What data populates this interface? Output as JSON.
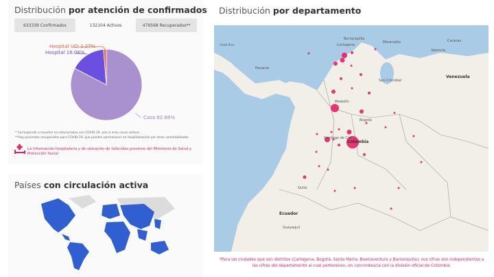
{
  "confirmed_card": {
    "title_light": "Distribución",
    "title_bold": "por atención de confirmados",
    "tabs": [
      {
        "label": "633339 Confirmados",
        "active": false
      },
      {
        "label": "132104 Activos",
        "active": true
      },
      {
        "label": "479568 Recuperados**",
        "active": false
      }
    ],
    "pie": [
      {
        "label": "Casa 82.68%",
        "value": 82.68,
        "color": "#a990cf"
      },
      {
        "label": "Hospital 16.06%",
        "value": 16.06,
        "color": "#6a4fe0"
      },
      {
        "label": "Hospital UCI 1.27%",
        "value": 1.27,
        "color": "#f0643c"
      }
    ],
    "notes": [
      "* Corresponde a muertes no relacionadas con COVID-19, aún si eran casos activos",
      "**Hay pacientes recuperados para COVID-19, que pueden permanecer en hospitalización por otras comorbilidades"
    ],
    "info": "La información hospitalaria y de ubicación de fallecidos proviene del Ministerio de Salud y Protección Social",
    "info_icon": "hospital-bed-icon",
    "accent": "#e91e63"
  },
  "countries_card": {
    "title_light": "Países",
    "title_bold": "con circulación activa",
    "active_color": "#2f5fd0"
  },
  "department_card": {
    "title_light": "Distribución",
    "title_bold": "por departamento",
    "map_labels": {
      "barranquilla": "Barranquilla",
      "cartagena": "Cartagena",
      "maracaibo": "Maracaibo",
      "caracas": "Caracas",
      "valencia": "Valencia",
      "panama": "Panamá",
      "costa_rica": "Costa Rica",
      "san_cristobal": "San Cristóbal",
      "venezuela": "Venezuela",
      "medellin": "Medellín",
      "bogota": "Bogotá",
      "cali": "Santiago de Cali",
      "colombia": "Colombia",
      "quito": "Quito",
      "ecuador": "Ecuador",
      "guayaquil": "Guayaquil"
    },
    "footnote": "*Para las ciudades que son distritos (Cartagena, Bogotá, Santa Marta, Buenaventura y Barranquilla), sus cifras son independientes a las cifras del departamento al cual pertenecen, en concordancia con la división oficial de Colombia.",
    "marker_color": "#e91e63"
  }
}
